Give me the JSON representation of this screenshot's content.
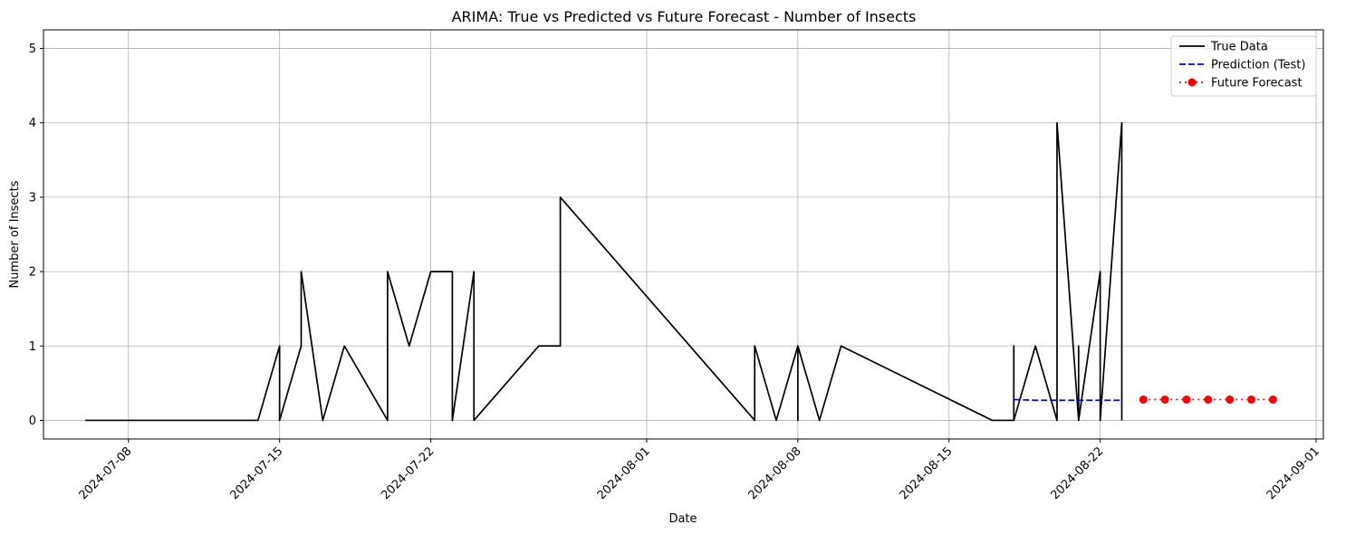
{
  "chart_data": {
    "type": "line",
    "title": "ARIMA: True vs Predicted vs Future Forecast - Number of Insects",
    "xlabel": "Date",
    "ylabel": "Number of Insects",
    "xlim": [
      "2024-07-04T01:36",
      "2024-09-01T08:00"
    ],
    "ylim": [
      -0.25,
      5.25
    ],
    "x_ticks": [
      "2024-07-08",
      "2024-07-15",
      "2024-07-22",
      "2024-08-01",
      "2024-08-08",
      "2024-08-15",
      "2024-08-22",
      "2024-09-01"
    ],
    "y_ticks": [
      0,
      1,
      2,
      3,
      4,
      5
    ],
    "grid": true,
    "legend_position": "top-right",
    "series": [
      {
        "name": "True Data",
        "color": "#000000",
        "style": "solid",
        "marker": "none",
        "x": [
          "2024-07-06",
          "2024-07-14",
          "2024-07-15",
          "2024-07-15",
          "2024-07-16",
          "2024-07-16",
          "2024-07-17",
          "2024-07-17",
          "2024-07-18",
          "2024-07-18",
          "2024-07-20",
          "2024-07-20",
          "2024-07-21",
          "2024-07-21",
          "2024-07-22",
          "2024-07-23",
          "2024-07-23",
          "2024-07-24",
          "2024-07-24",
          "2024-07-27",
          "2024-07-28",
          "2024-07-28",
          "2024-08-06",
          "2024-08-06",
          "2024-08-06",
          "2024-08-07",
          "2024-08-07",
          "2024-08-08",
          "2024-08-08",
          "2024-08-08",
          "2024-08-09",
          "2024-08-09",
          "2024-08-10",
          "2024-08-17",
          "2024-08-18",
          "2024-08-18",
          "2024-08-18",
          "2024-08-19",
          "2024-08-20",
          "2024-08-20",
          "2024-08-20",
          "2024-08-21",
          "2024-08-21",
          "2024-08-21",
          "2024-08-22",
          "2024-08-22",
          "2024-08-22",
          "2024-08-23",
          "2024-08-23",
          "2024-08-23"
        ],
        "y": [
          0,
          0,
          1,
          0,
          1,
          2,
          0,
          0,
          1,
          1,
          0,
          2,
          1,
          1,
          2,
          2,
          0,
          2,
          0,
          1,
          1,
          3,
          0,
          0,
          1,
          0,
          0,
          1,
          0,
          1,
          0,
          0,
          1,
          0,
          0,
          1,
          0,
          1,
          0,
          0,
          4,
          0,
          1,
          0,
          2,
          0,
          0,
          4,
          2,
          0
        ]
      },
      {
        "name": "Prediction (Test)",
        "color": "#0000ff",
        "style": "dashed",
        "marker": "none",
        "x": [
          "2024-08-18",
          "2024-08-19",
          "2024-08-20",
          "2024-08-21",
          "2024-08-22",
          "2024-08-23"
        ],
        "y": [
          0.28,
          0.27,
          0.27,
          0.27,
          0.27,
          0.27
        ]
      },
      {
        "name": "Future Forecast",
        "color": "#ff0000",
        "style": "dotted",
        "marker": "circle",
        "x": [
          "2024-08-24",
          "2024-08-25",
          "2024-08-26",
          "2024-08-27",
          "2024-08-28",
          "2024-08-29",
          "2024-08-30"
        ],
        "y": [
          0.28,
          0.28,
          0.28,
          0.28,
          0.28,
          0.28,
          0.28
        ]
      }
    ]
  }
}
